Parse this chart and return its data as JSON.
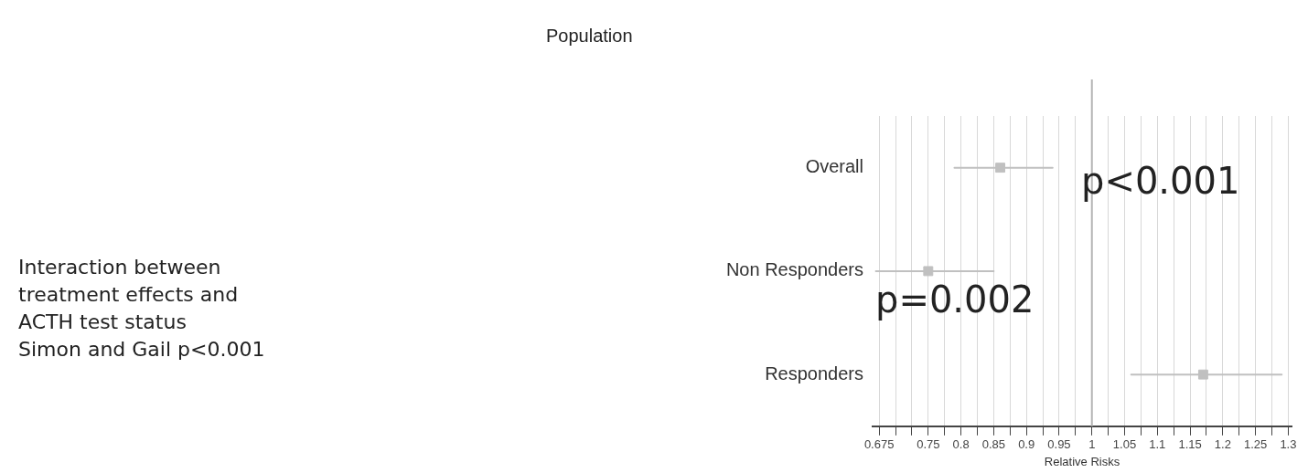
{
  "chart_data": {
    "type": "scatter",
    "orientation": "horizontal",
    "xlabel": "Relative Risks",
    "categories": [
      "Overall",
      "Non Responders",
      "Responders"
    ],
    "values": [
      0.86,
      0.75,
      1.17
    ],
    "errors": [
      [
        0.79,
        0.94
      ],
      [
        0.67,
        0.85
      ],
      [
        1.06,
        1.29
      ]
    ],
    "color": "#c0c0c0",
    "marker": "square",
    "xlim": [
      0.665,
      1.305
    ],
    "xticks": [
      0.675,
      {
        "value": 0.7,
        "label": null
      },
      {
        "value": 0.725,
        "label": null
      },
      0.75,
      {
        "value": 0.775,
        "label": null
      },
      0.8,
      {
        "value": 0.825,
        "label": null
      },
      0.85,
      {
        "value": 0.875,
        "label": null
      },
      0.9,
      {
        "value": 0.925,
        "label": null
      },
      0.95,
      {
        "value": 0.975,
        "label": null
      },
      1,
      {
        "value": 1.025,
        "label": null
      },
      1.05,
      {
        "value": 1.075,
        "label": null
      },
      1.1,
      {
        "value": 1.125,
        "label": null
      },
      1.15,
      {
        "value": 1.175,
        "label": null
      },
      1.2,
      {
        "value": 1.225,
        "label": null
      },
      1.25,
      {
        "value": 1.275,
        "label": null
      },
      1.3
    ],
    "grid": "x",
    "ref_lines": [
      {
        "axis": "x",
        "value": 1,
        "color": "#b4b4b4"
      }
    ],
    "annotations": [
      "Population",
      "Interaction between\ntreatment effects and\nACTH test status\nSimon and Gail p<0.001",
      "p<0.001",
      "p=0.002"
    ]
  }
}
